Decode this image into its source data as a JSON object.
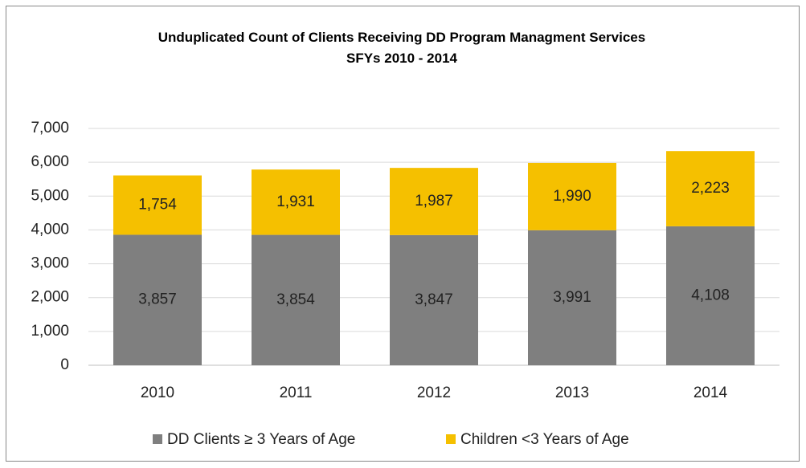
{
  "chart_data": {
    "type": "stacked_bar",
    "title": "Unduplicated Count of Clients Receiving DD Program Managment Services",
    "subtitle": "SFYs 2010 - 2014",
    "categories": [
      "2010",
      "2011",
      "2012",
      "2013",
      "2014"
    ],
    "series": [
      {
        "name": "DD Clients ≥ 3 Years of Age",
        "color": "#7f7f7f",
        "values": [
          3857,
          3854,
          3847,
          3991,
          4108
        ],
        "value_labels": [
          "3,857",
          "3,854",
          "3,847",
          "3,991",
          "4,108"
        ]
      },
      {
        "name": "Children <3 Years of Age",
        "color": "#f5c000",
        "values": [
          1754,
          1931,
          1987,
          1990,
          2223
        ],
        "value_labels": [
          "1,754",
          "1,931",
          "1,987",
          "1,990",
          "2,223"
        ]
      }
    ],
    "ylim": [
      0,
      7000
    ],
    "yticks": [
      0,
      {
        "value": 1000,
        "label": "1,000"
      },
      {
        "value": 2000,
        "label": "2,000"
      },
      {
        "value": 3000,
        "label": "3,000"
      },
      {
        "value": 4000,
        "label": "4,000"
      },
      {
        "value": 5000,
        "label": "5,000"
      },
      {
        "value": 6000,
        "label": "6,000"
      },
      {
        "value": 7000,
        "label": "7,000"
      }
    ],
    "grid": true,
    "legend": "bottom"
  }
}
